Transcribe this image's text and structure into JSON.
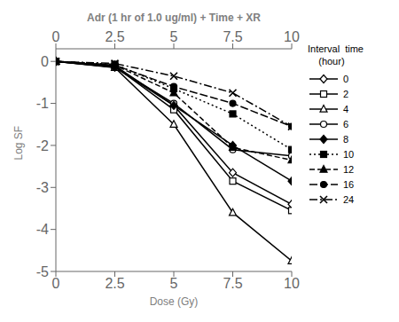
{
  "chart_data": {
    "type": "line",
    "title": "Adr (1 hr of 1.0 ug/ml) + Time + XR",
    "x_label": "Dose (Gy)",
    "y_label": "Log SF",
    "x": [
      0,
      2.5,
      5,
      7.5,
      10
    ],
    "xlim": [
      0,
      10
    ],
    "xticks": [
      0,
      2.5,
      5,
      7.5,
      10
    ],
    "x2lim": [
      0,
      10
    ],
    "x2ticks": [
      0,
      2.5,
      5,
      7.5,
      10
    ],
    "ylim": [
      -5,
      0.3
    ],
    "yticks": [
      0,
      -1,
      -2,
      -3,
      -4,
      -5
    ],
    "grid": false,
    "legend": "right",
    "legend_title": "Interval  time\n    (hour)",
    "series": [
      {
        "name": "0",
        "color": "black",
        "marker": "diamond-open",
        "line_style": "solid",
        "values": [
          0,
          -0.1,
          -1.05,
          -2.65,
          -3.4
        ]
      },
      {
        "name": "2",
        "color": "black",
        "marker": "square-open",
        "line_style": "solid",
        "values": [
          0,
          -0.12,
          -1.15,
          -2.85,
          -3.55
        ]
      },
      {
        "name": "4",
        "color": "black",
        "marker": "triangle-open",
        "line_style": "solid",
        "values": [
          0,
          -0.15,
          -1.5,
          -3.6,
          -4.75
        ]
      },
      {
        "name": "6",
        "color": "black",
        "marker": "circle-open",
        "line_style": "solid",
        "values": [
          0,
          -0.14,
          -1.0,
          -2.1,
          -2.25
        ]
      },
      {
        "name": "8",
        "color": "black",
        "marker": "diamond",
        "line_style": "solid",
        "values": [
          0,
          -0.14,
          -1.05,
          -2.0,
          -2.85
        ]
      },
      {
        "name": "10",
        "color": "black",
        "marker": "square",
        "line_style": "dotted",
        "values": [
          0,
          -0.07,
          -0.65,
          -1.25,
          -2.1
        ]
      },
      {
        "name": "12",
        "color": "black",
        "marker": "triangle",
        "line_style": "dashed",
        "values": [
          0,
          -0.09,
          -0.75,
          -2.05,
          -2.35
        ]
      },
      {
        "name": "16",
        "color": "black",
        "marker": "circle",
        "line_style": "longdash",
        "values": [
          0,
          -0.09,
          -0.6,
          -1.0,
          -1.55
        ]
      },
      {
        "name": "24",
        "color": "black",
        "marker": "x",
        "line_style": "dashdot",
        "values": [
          0,
          -0.05,
          -0.35,
          -0.75,
          -1.55
        ]
      }
    ]
  }
}
